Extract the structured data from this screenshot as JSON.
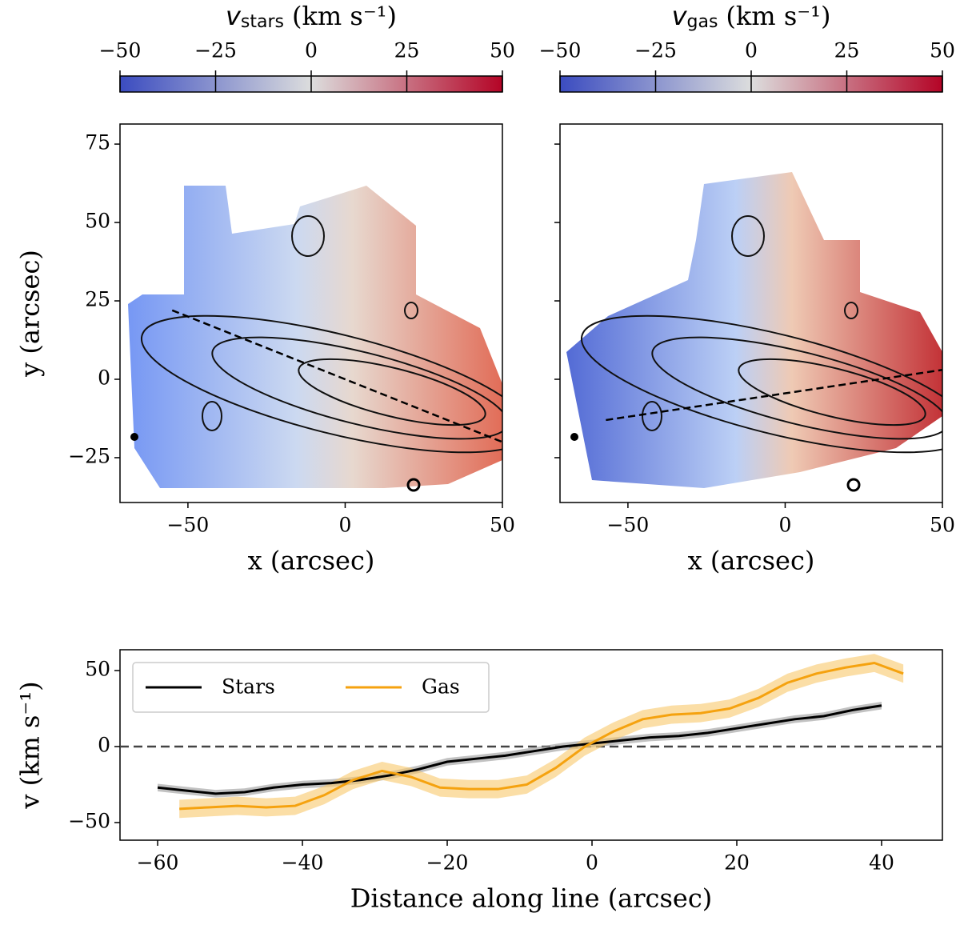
{
  "chart_data": [
    {
      "type": "map",
      "colorbar_symbol": "v",
      "colorbar_subscript": "stars",
      "colorbar_unit": "(km s⁻¹)",
      "clim": [
        -50,
        50
      ],
      "cticks": [
        {
          "value": -50,
          "label": "−50"
        },
        {
          "value": -25,
          "label": "−25"
        },
        0,
        25,
        50
      ],
      "colors": [
        "#3b4cc0",
        "#dcdddd",
        "#b40426"
      ],
      "xlabel": "x (arcsec)",
      "ylabel": "y (arcsec)",
      "xlim": [
        -71.6,
        50
      ],
      "ylim": [
        -39.3,
        81.4
      ],
      "xticks": [
        {
          "value": -50,
          "label": "−50"
        },
        0,
        50
      ],
      "yticks": [
        {
          "value": -25,
          "label": "−25"
        },
        0,
        25,
        50,
        75
      ],
      "show_ytick_labels": true,
      "cut_line": {
        "x": [
          -55,
          50
        ],
        "y": [
          22,
          -20
        ]
      }
    },
    {
      "type": "map",
      "colorbar_symbol": "v",
      "colorbar_subscript": "gas",
      "colorbar_unit": "(km s⁻¹)",
      "clim": [
        -50,
        50
      ],
      "cticks": [
        {
          "value": -50,
          "label": "−50"
        },
        {
          "value": -25,
          "label": "−25"
        },
        0,
        25,
        50
      ],
      "colors": [
        "#3b4cc0",
        "#dcdddd",
        "#b40426"
      ],
      "xlabel": "x (arcsec)",
      "xlim": [
        -71.6,
        50
      ],
      "ylim": [
        -39.3,
        81.4
      ],
      "xticks": [
        {
          "value": -50,
          "label": "−50"
        },
        0,
        50
      ],
      "yticks": [
        -25,
        0,
        25,
        50,
        75
      ],
      "show_ytick_labels": false,
      "cut_line": {
        "x": [
          -57,
          50
        ],
        "y": [
          -13,
          3
        ]
      }
    },
    {
      "type": "line",
      "xlabel": "Distance along line (arcsec)",
      "ylabel": "v (km s⁻¹)",
      "xlim": [
        -65.2,
        48.4
      ],
      "ylim": [
        -61.6,
        63.7
      ],
      "xticks": [
        {
          "value": -60,
          "label": "−60"
        },
        {
          "value": -40,
          "label": "−40"
        },
        {
          "value": -20,
          "label": "−20"
        },
        0,
        20,
        40
      ],
      "yticks": [
        {
          "value": -50,
          "label": "−50"
        },
        0,
        50
      ],
      "hline": 0,
      "legend": "upper left",
      "series": [
        {
          "name": "Stars",
          "color": "#000000",
          "band_color": "#9a9a9a",
          "error": 2.5,
          "x": [
            -60,
            -56,
            -52,
            -48,
            -44,
            -40,
            -36,
            -32,
            -28,
            -24,
            -20,
            -16,
            -12,
            -8,
            -4,
            0,
            4,
            8,
            12,
            16,
            20,
            24,
            28,
            32,
            36,
            40
          ],
          "values": [
            -27,
            -29,
            -31,
            -30,
            -27,
            -25,
            -24,
            -22,
            -19,
            -15,
            -10,
            -8,
            -6,
            -3,
            0,
            2,
            4,
            6,
            7,
            9,
            12,
            15,
            18,
            20,
            24,
            27
          ]
        },
        {
          "name": "Gas",
          "color": "#f5a20f",
          "band_color": "#f8c86a",
          "error": 6,
          "x": [
            -57,
            -53,
            -49,
            -45,
            -41,
            -37,
            -33,
            -29,
            -25,
            -21,
            -17,
            -13,
            -9,
            -5,
            -1,
            3,
            7,
            11,
            15,
            19,
            23,
            27,
            31,
            35,
            39,
            43
          ],
          "values": [
            -41,
            -40,
            -39,
            -40,
            -39,
            -32,
            -22,
            -16,
            -20,
            -27,
            -28,
            -28,
            -25,
            -14,
            0,
            10,
            18,
            21,
            22,
            25,
            32,
            42,
            48,
            52,
            55,
            48
          ]
        }
      ]
    }
  ]
}
